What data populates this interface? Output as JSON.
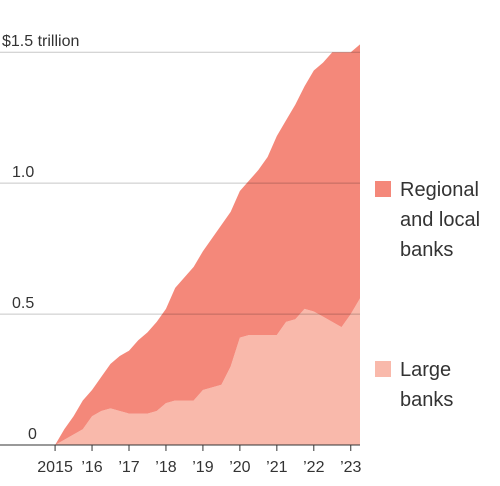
{
  "chart_data": {
    "type": "stacked-area",
    "x": [
      2015,
      2015.25,
      2015.5,
      2015.75,
      2016,
      2016.25,
      2016.5,
      2016.75,
      2017,
      2017.25,
      2017.5,
      2017.75,
      2018,
      2018.25,
      2018.5,
      2018.75,
      2019,
      2019.25,
      2019.5,
      2019.75,
      2020,
      2020.25,
      2020.5,
      2020.75,
      2021,
      2021.25,
      2021.5,
      2021.75,
      2022,
      2022.25,
      2022.5,
      2022.75,
      2023,
      2023.25
    ],
    "series": [
      {
        "name": "Large banks",
        "color": "#f9b9ab",
        "values": [
          0,
          0.02,
          0.04,
          0.06,
          0.11,
          0.13,
          0.14,
          0.13,
          0.12,
          0.12,
          0.12,
          0.13,
          0.16,
          0.17,
          0.17,
          0.17,
          0.21,
          0.22,
          0.23,
          0.3,
          0.41,
          0.42,
          0.42,
          0.42,
          0.42,
          0.47,
          0.48,
          0.52,
          0.51,
          0.49,
          0.47,
          0.45,
          0.5,
          0.56
        ]
      },
      {
        "name": "Regional and local banks",
        "color": "#f4887a",
        "values": [
          0,
          0.04,
          0.07,
          0.11,
          0.1,
          0.13,
          0.17,
          0.21,
          0.24,
          0.28,
          0.31,
          0.34,
          0.36,
          0.43,
          0.47,
          0.51,
          0.53,
          0.57,
          0.61,
          0.59,
          0.56,
          0.59,
          0.63,
          0.68,
          0.76,
          0.77,
          0.82,
          0.85,
          0.92,
          0.97,
          1.03,
          1.05,
          1.0,
          0.97
        ]
      }
    ],
    "xlim": [
      2013.51,
      2023.25
    ],
    "xticks": [
      2015,
      {
        "value": 2016,
        "label": "’16"
      },
      {
        "value": 2017,
        "label": "’17"
      },
      {
        "value": 2018,
        "label": "’18"
      },
      {
        "value": 2019,
        "label": "’19"
      },
      {
        "value": 2020,
        "label": "’20"
      },
      {
        "value": 2021,
        "label": "’21"
      },
      {
        "value": 2022,
        "label": "’22"
      },
      {
        "value": 2023,
        "label": "’23"
      }
    ],
    "ylim": [
      0,
      1.6
    ],
    "yticks": [
      0,
      0.5,
      {
        "value": 1,
        "label": "1.0"
      },
      {
        "value": 1.5,
        "label": "$1.5 trillion"
      }
    ],
    "grid": true
  }
}
